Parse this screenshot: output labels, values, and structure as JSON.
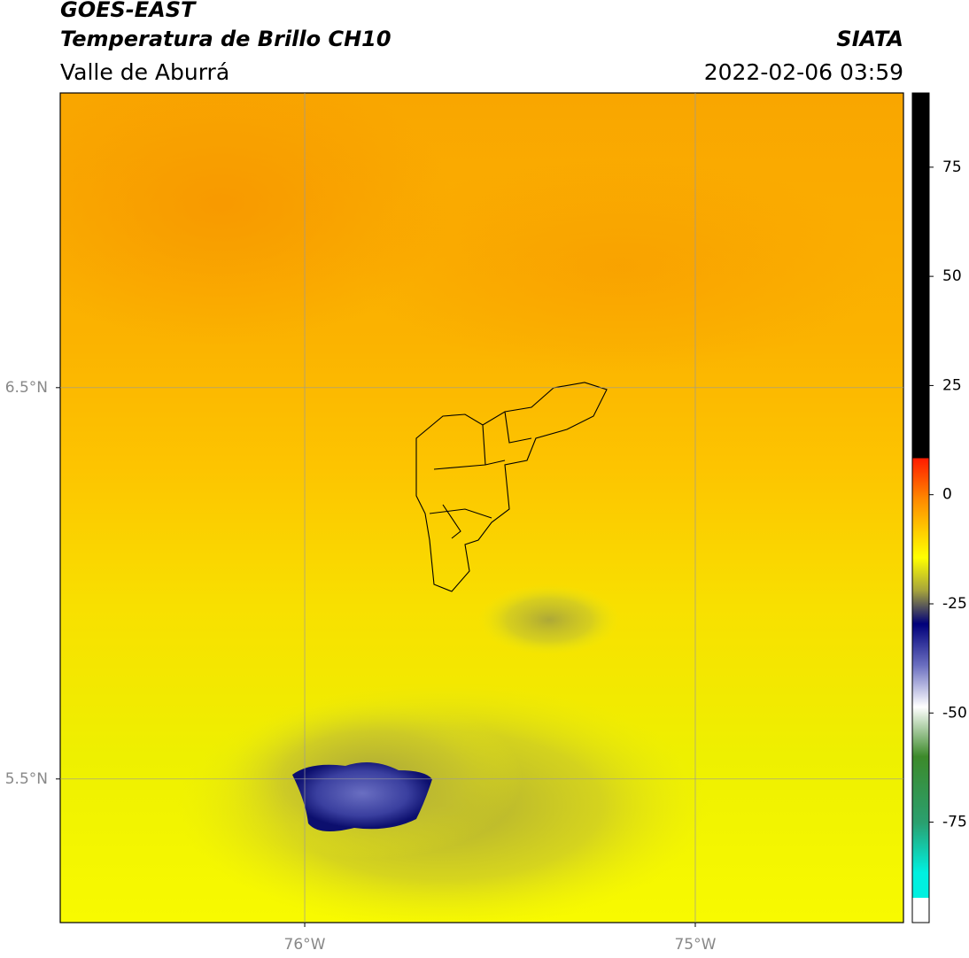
{
  "header": {
    "title": "GOES-EAST",
    "subtitle": "Temperatura de Brillo CH10",
    "region": "Valle de Aburrá",
    "source": "SIATA",
    "datetime": "2022-02-06 03:59"
  },
  "map": {
    "xlim": [
      -76.626,
      -74.467
    ],
    "ylim": [
      5.133,
      7.253
    ],
    "xticks": [
      {
        "value": -76,
        "label": "76°W"
      },
      {
        "value": -75,
        "label": "75°W"
      }
    ],
    "yticks": [
      {
        "value": 6.5,
        "label": "6.5°N"
      },
      {
        "value": 5.5,
        "label": "5.5°N"
      }
    ],
    "grid": true
  },
  "colorbar": {
    "lim": [
      -98,
      92
    ],
    "ticks": [
      75,
      50,
      25,
      0,
      -25,
      -50,
      -75
    ]
  }
}
